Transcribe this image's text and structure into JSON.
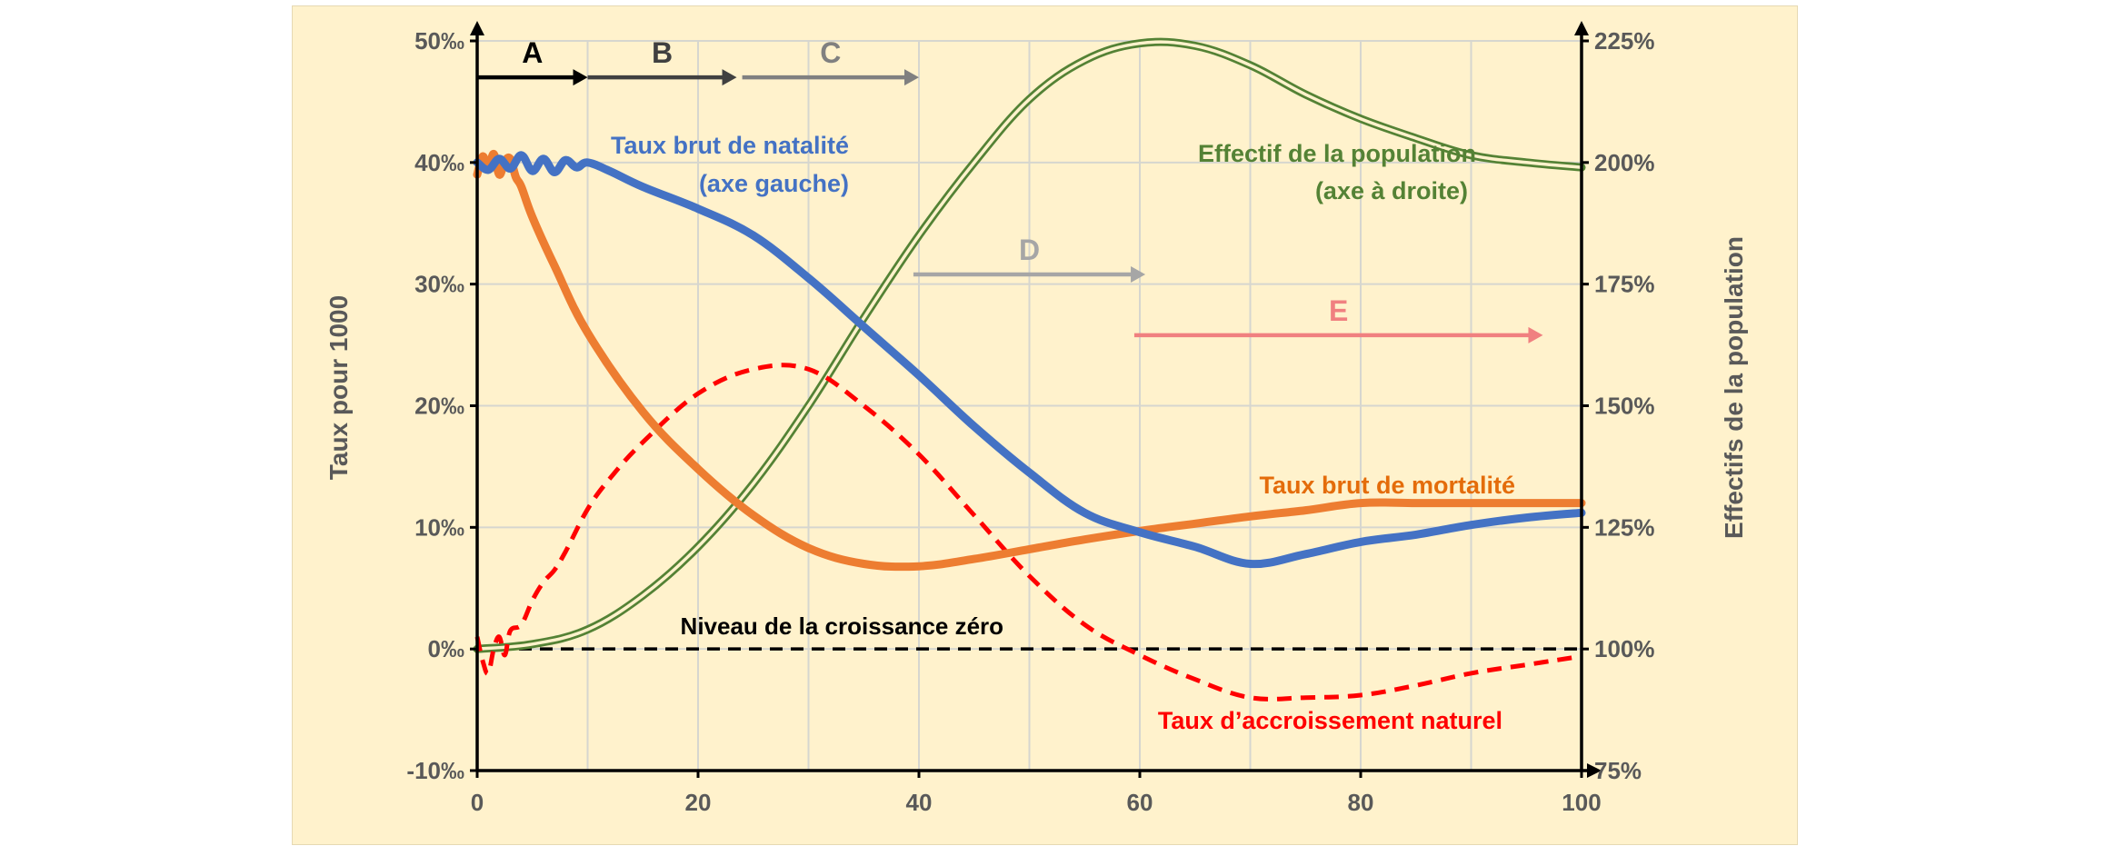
{
  "chart_data": {
    "type": "line",
    "title": "",
    "xlabel": "",
    "ylabel_left": "Taux pour 1000",
    "ylabel_right": "Effectifs de la population",
    "xlim": [
      0,
      100
    ],
    "ylim_left": [
      -10,
      50
    ],
    "ylim_right": [
      75,
      225
    ],
    "grid": true,
    "x_ticks": [
      "0",
      "20",
      "40",
      "60",
      "80",
      "100"
    ],
    "x_tick_values": [
      0,
      20,
      40,
      60,
      80,
      100
    ],
    "y_left_ticks": [
      "-10‰",
      "0‰",
      "10‰",
      "20‰",
      "30‰",
      "40‰",
      "50‰"
    ],
    "y_left_tick_values": [
      -10,
      0,
      10,
      20,
      30,
      40,
      50
    ],
    "y_right_ticks": [
      "75%",
      "100%",
      "125%",
      "150%",
      "175%",
      "200%",
      "225%"
    ],
    "y_right_tick_values": [
      75,
      100,
      125,
      150,
      175,
      200,
      225
    ],
    "series": [
      {
        "name": "Taux brut de natalité",
        "axis": "left",
        "color": "#4472c4",
        "style": "solid",
        "x": [
          0,
          1,
          2,
          3,
          4,
          5,
          6,
          7,
          8,
          9,
          10,
          12,
          15,
          20,
          25,
          30,
          35,
          40,
          45,
          50,
          55,
          60,
          65,
          70,
          75,
          80,
          85,
          90,
          95,
          100
        ],
        "values": [
          40,
          39.4,
          40.3,
          39.5,
          40.6,
          39.3,
          40.3,
          39.2,
          40.2,
          39.6,
          40,
          39.3,
          38,
          36.2,
          34,
          30.5,
          26.5,
          22.5,
          18.3,
          14.5,
          11.2,
          9.6,
          8.4,
          7,
          7.8,
          8.8,
          9.4,
          10.2,
          10.8,
          11.2
        ]
      },
      {
        "name": "Taux brut de mortalité",
        "axis": "left",
        "color": "#ed7d31",
        "style": "solid",
        "x": [
          0,
          0.5,
          1,
          1.5,
          2,
          2.5,
          3,
          3.5,
          4,
          5,
          7,
          10,
          15,
          20,
          25,
          30,
          35,
          40,
          45,
          50,
          55,
          60,
          65,
          70,
          75,
          80,
          85,
          90,
          95,
          100
        ],
        "values": [
          39,
          40.5,
          39.5,
          40.7,
          39,
          40.1,
          40.3,
          38.8,
          38,
          35.5,
          31.5,
          26,
          19.5,
          14.8,
          11,
          8.3,
          7,
          6.8,
          7.4,
          8.2,
          9,
          9.7,
          10.3,
          10.9,
          11.4,
          12,
          12,
          12,
          12,
          12
        ]
      },
      {
        "name": "Taux d’accroissement naturel",
        "axis": "left",
        "color": "#ff0000",
        "style": "dashed",
        "x": [
          0,
          0.5,
          1,
          1.5,
          2,
          2.5,
          3,
          4,
          5,
          6,
          7,
          8,
          10,
          12,
          15,
          20,
          25,
          30,
          35,
          40,
          45,
          50,
          55,
          60,
          65,
          70,
          75,
          80,
          85,
          90,
          95,
          100
        ],
        "values": [
          1,
          -1,
          -2,
          0,
          1,
          -0.5,
          1.5,
          2,
          4,
          5.5,
          6.5,
          8,
          11.5,
          14,
          17,
          21,
          23,
          23,
          20,
          16,
          11,
          6,
          2,
          -0.5,
          -2.5,
          -4,
          -4,
          -3.8,
          -3,
          -2,
          -1.3,
          -0.6
        ]
      },
      {
        "name": "Effectif de la population",
        "axis": "right",
        "color": "#548235",
        "style": "double",
        "x": [
          0,
          5,
          10,
          15,
          20,
          25,
          30,
          35,
          40,
          45,
          50,
          55,
          60,
          65,
          70,
          75,
          80,
          85,
          90,
          95,
          100
        ],
        "values": [
          100,
          101,
          104,
          111,
          121,
          134,
          150,
          168,
          185,
          200,
          213,
          221,
          224.5,
          224,
          220,
          214,
          209,
          205,
          201.5,
          200,
          199
        ]
      }
    ],
    "zero_line": {
      "label": "Niveau de la croissance zéro",
      "y": 0
    },
    "phases": [
      {
        "label": "A",
        "x_start": 0,
        "x_end": 10,
        "color": "#000000",
        "level": 47
      },
      {
        "label": "B",
        "x_start": 10,
        "x_end": 23.5,
        "color": "#404040",
        "level": 47
      },
      {
        "label": "C",
        "x_start": 24,
        "x_end": 40,
        "color": "#808080",
        "level": 47
      },
      {
        "label": "D",
        "x_start": 39.5,
        "x_end": 60.5,
        "color": "#a6a6a6",
        "level": 30.8
      },
      {
        "label": "E",
        "x_start": 59.5,
        "x_end": 96.5,
        "color": "#f08080",
        "level": 25.8
      }
    ],
    "annotations": [
      {
        "id": "natalite",
        "lines": [
          "Taux brut de natalité",
          "(axe gauche)"
        ],
        "color": "#4472c4"
      },
      {
        "id": "population",
        "lines": [
          "Effectif de la population",
          "(axe à droite)"
        ],
        "color": "#548235"
      },
      {
        "id": "mortalite",
        "lines": [
          "Taux brut de mortalité"
        ],
        "color": "#e46c0a"
      },
      {
        "id": "accroissement",
        "lines": [
          "Taux d’accroissement naturel"
        ],
        "color": "#ff0000"
      }
    ]
  }
}
